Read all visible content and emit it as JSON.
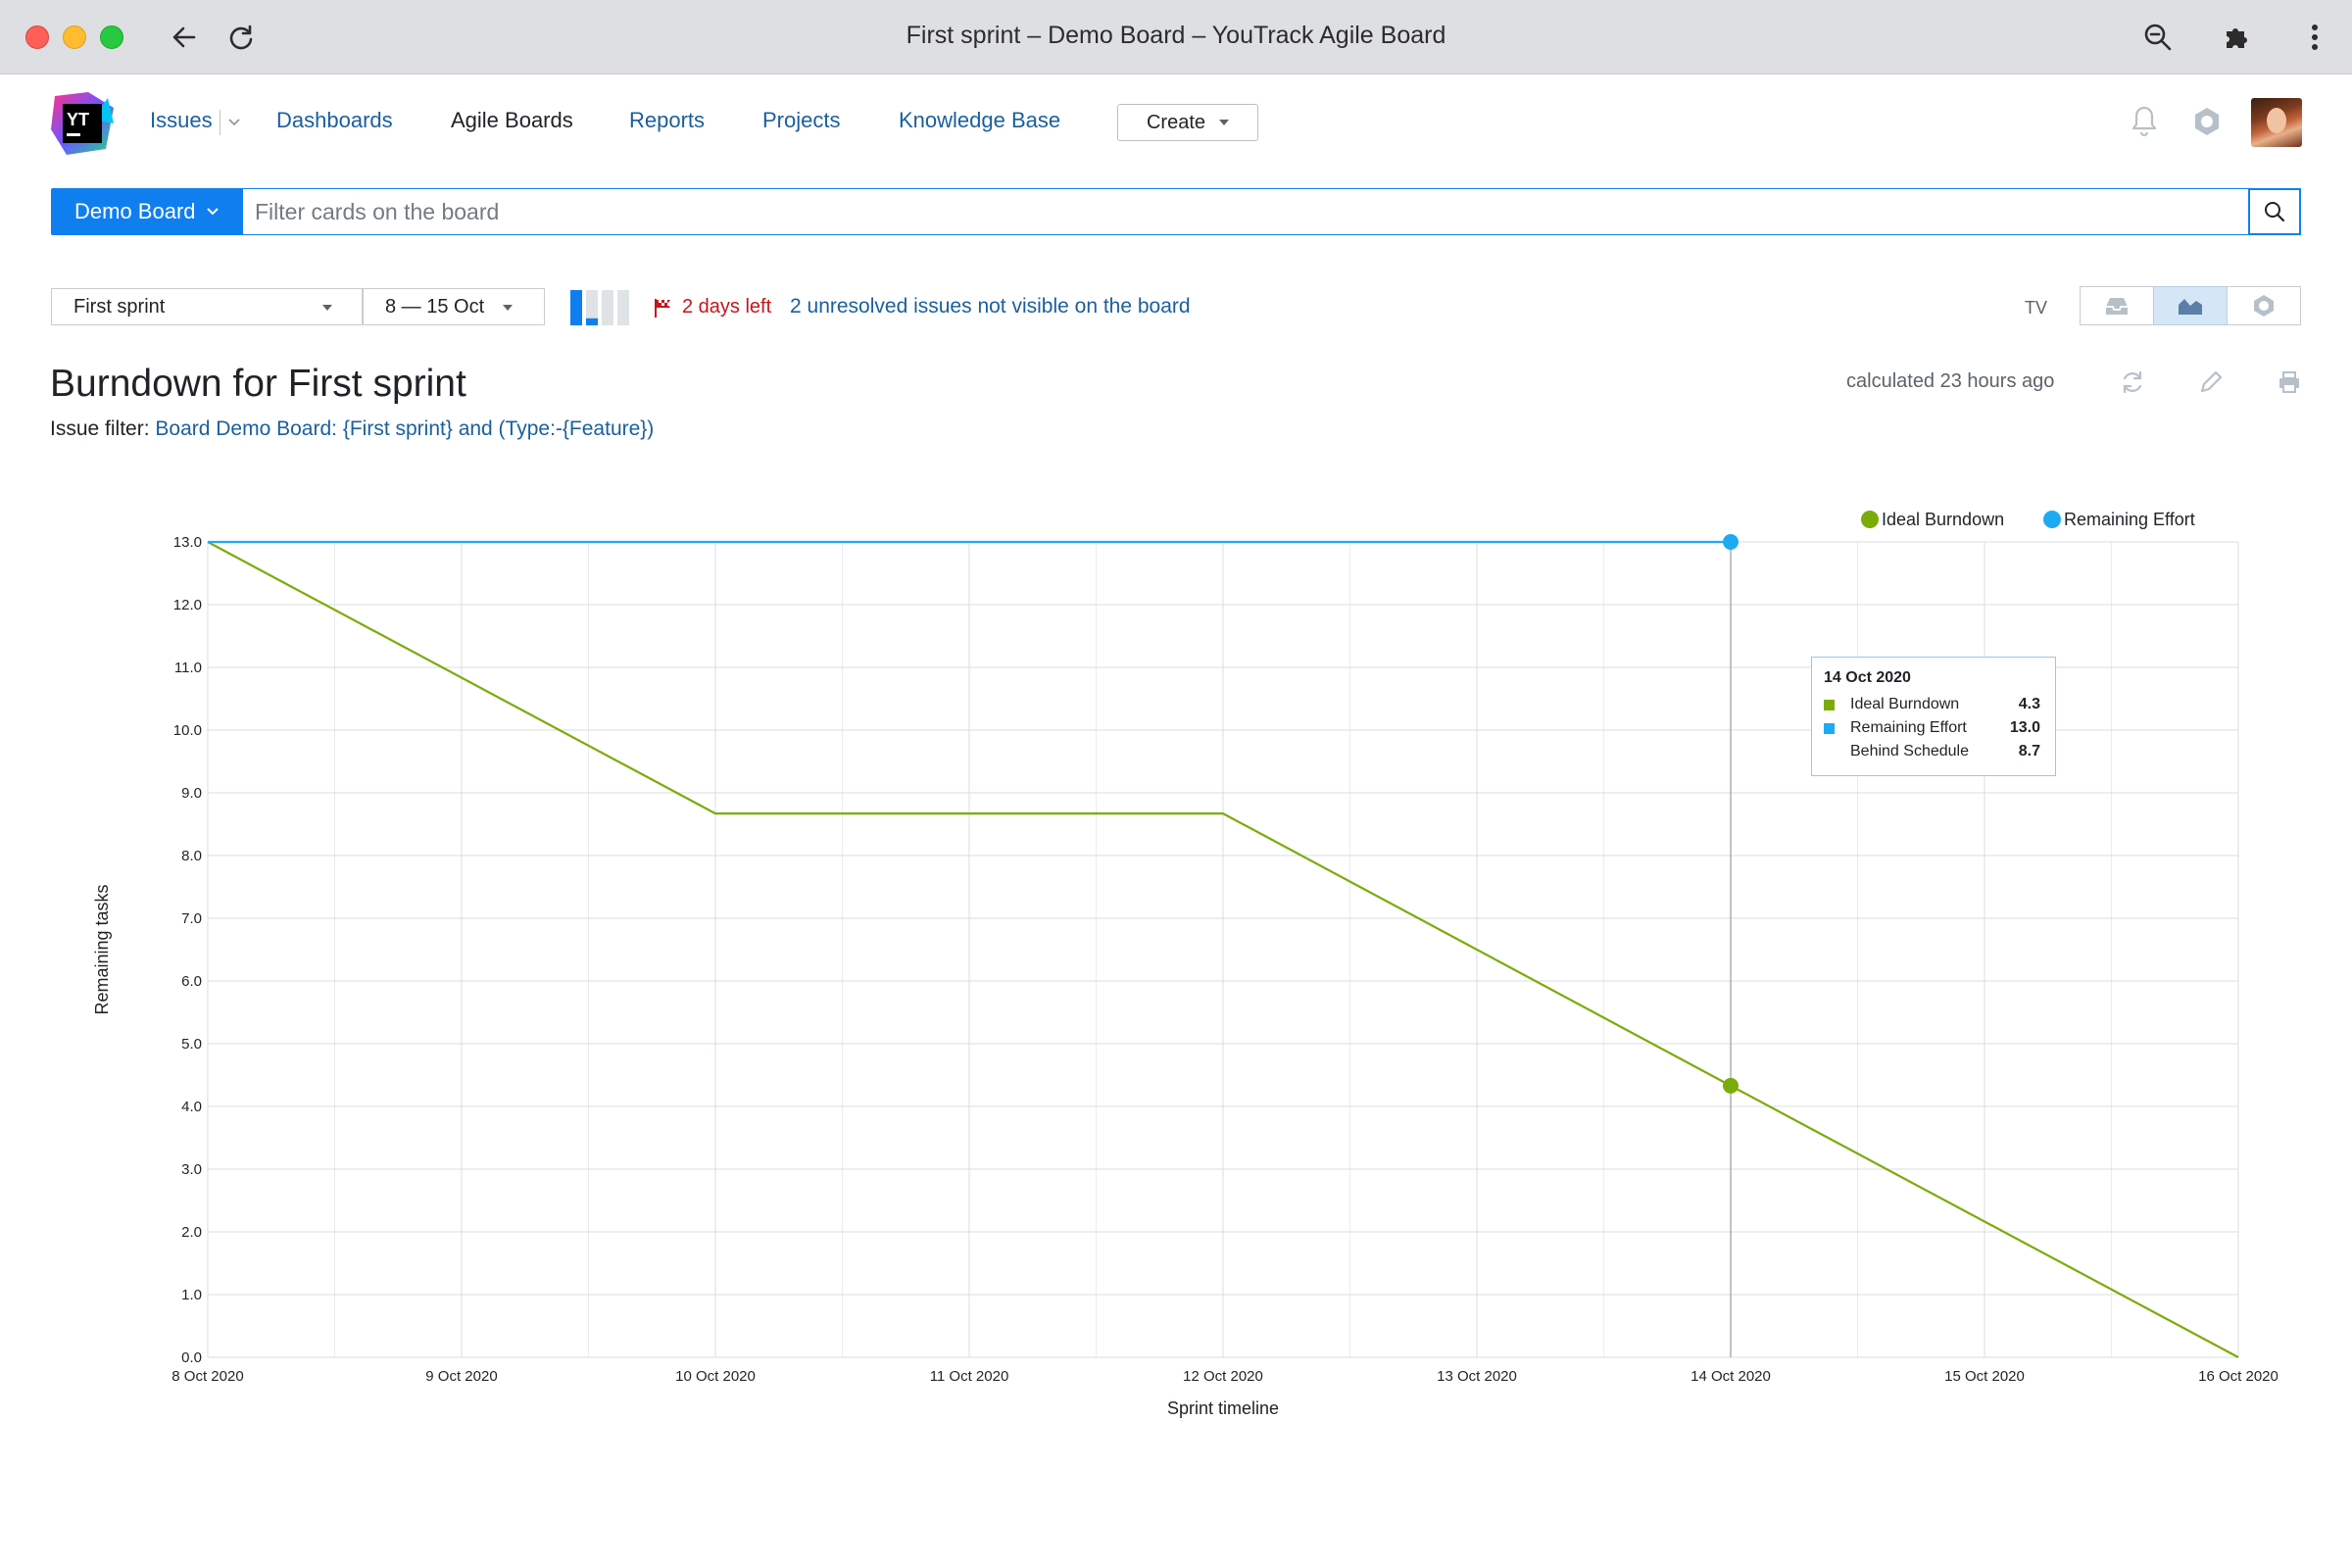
{
  "browser": {
    "title": "First sprint – Demo Board – YouTrack Agile Board"
  },
  "header": {
    "logo_text": "YT",
    "nav": {
      "issues": "Issues",
      "dashboards": "Dashboards",
      "agile_boards": "Agile Boards",
      "reports": "Reports",
      "projects": "Projects",
      "knowledge_base": "Knowledge Base"
    },
    "create_label": "Create"
  },
  "search": {
    "board_label": "Demo Board",
    "placeholder": "Filter cards on the board"
  },
  "sprint_bar": {
    "sprint": "First sprint",
    "dates": "8 — 15 Oct",
    "days_left": "2 days left",
    "unresolved": "2 unresolved issues not visible on the board",
    "tv_label": "TV",
    "sprint_progress": 0.75
  },
  "report": {
    "title": "Burndown for First sprint",
    "filter_label": "Issue filter:",
    "filter_value": "Board Demo Board: {First sprint} and (Type:-{Feature})",
    "calculated": "calculated 23 hours ago"
  },
  "colors": {
    "accent": "#0f7ff0",
    "link": "#1a5f9e",
    "ideal": "#7bab0a",
    "remaining": "#1eaaf1",
    "danger": "#c4161c"
  },
  "tooltip": {
    "date": "14 Oct 2020",
    "rows": [
      {
        "name": "Ideal Burndown",
        "value": "4.3",
        "color": "#7bab0a"
      },
      {
        "name": "Remaining Effort",
        "value": "13.0",
        "color": "#1eaaf1"
      },
      {
        "name": "Behind Schedule",
        "value": "8.7",
        "color": ""
      }
    ]
  },
  "chart_data": {
    "type": "line",
    "xlabel": "Sprint timeline",
    "ylabel": "Remaining tasks",
    "x": [
      "8 Oct 2020",
      "9 Oct 2020",
      "10 Oct 2020",
      "11 Oct 2020",
      "12 Oct 2020",
      "13 Oct 2020",
      "14 Oct 2020",
      "15 Oct 2020",
      "16 Oct 2020"
    ],
    "y_ticks": [
      "0.0",
      "1.0",
      "2.0",
      "3.0",
      "4.0",
      "5.0",
      "6.0",
      "7.0",
      "8.0",
      "9.0",
      "10.0",
      "11.0",
      "12.0",
      "13.0"
    ],
    "ylim": [
      0,
      13
    ],
    "grid": true,
    "legend_position": "top-right",
    "highlight_x_index": 6,
    "series": [
      {
        "name": "Ideal Burndown",
        "color": "#7bab0a",
        "points": [
          [
            0,
            13.0
          ],
          [
            2,
            8.67
          ],
          [
            4,
            8.67
          ],
          [
            6,
            4.33
          ],
          [
            8,
            0.0
          ]
        ],
        "marker_at_index": 6
      },
      {
        "name": "Remaining Effort",
        "color": "#1eaaf1",
        "points": [
          [
            0,
            13.0
          ],
          [
            6,
            13.0
          ]
        ],
        "marker_at_index": 6
      }
    ]
  }
}
